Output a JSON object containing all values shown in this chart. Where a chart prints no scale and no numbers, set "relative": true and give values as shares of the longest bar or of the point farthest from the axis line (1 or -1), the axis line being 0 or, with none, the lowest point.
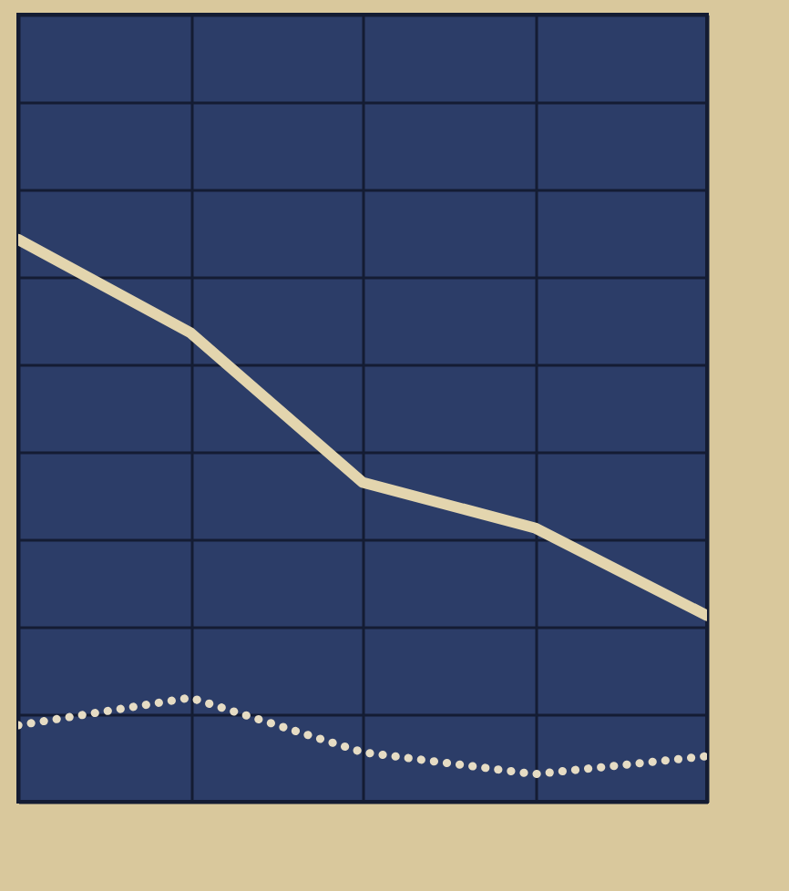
{
  "chart_data": {
    "type": "line",
    "relative": true,
    "categories": [
      null,
      null,
      null,
      null,
      null
    ],
    "grid": true,
    "series": [
      {
        "color": "#e3d5ae",
        "line_style": "solid",
        "values": [
          1,
          0.834,
          0.568,
          0.487,
          0.331
        ]
      },
      {
        "color": "#e6dcc4",
        "line_style": "dotted",
        "values": [
          0.136,
          0.185,
          0.088,
          0.049,
          0.081
        ]
      }
    ]
  }
}
